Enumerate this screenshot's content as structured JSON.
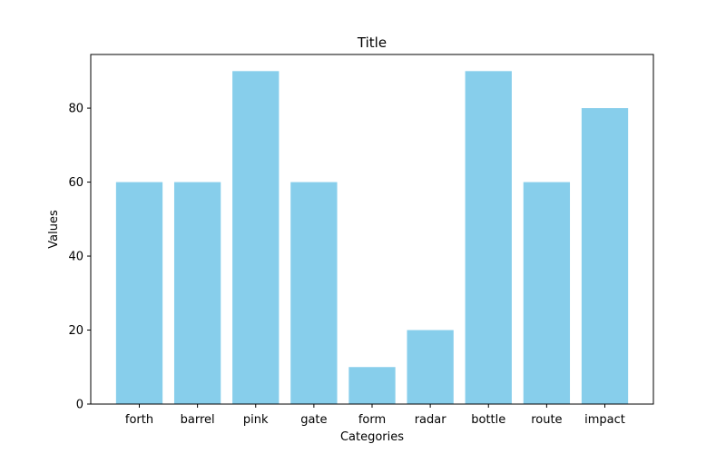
{
  "chart_data": {
    "type": "bar",
    "title": "Title",
    "xlabel": "Categories",
    "ylabel": "Values",
    "categories": [
      "forth",
      "barrel",
      "pink",
      "gate",
      "form",
      "radar",
      "bottle",
      "route",
      "impact"
    ],
    "values": [
      60,
      60,
      90,
      60,
      10,
      20,
      90,
      60,
      80
    ],
    "ylim": [
      0,
      94.5
    ],
    "yticks": [
      0,
      20,
      40,
      60,
      80
    ],
    "grid": false,
    "bar_color": "#87ceeb",
    "axis_color": "#000000"
  }
}
